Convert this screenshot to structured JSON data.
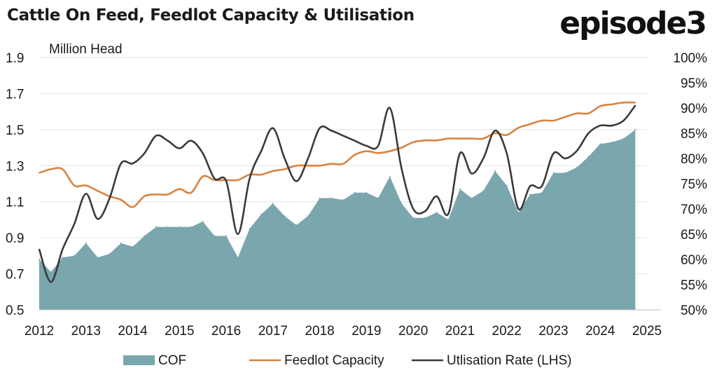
{
  "title": "Cattle On Feed, Feedlot Capacity & Utilisation",
  "logo": "episode3",
  "colors": {
    "cof": "#7aa6ae",
    "capacity": "#d9833f",
    "utilisation": "#3a3a3a",
    "grid": "#e3e3e3"
  },
  "chart_data": {
    "type": "area",
    "title": "Cattle On Feed, Feedlot Capacity & Utilisation",
    "left_axis_label": "Million Head",
    "ylim_left": [
      0.5,
      1.9
    ],
    "left_ticks": [
      "0.5",
      "0.7",
      "0.9",
      "1.1",
      "1.3",
      "1.5",
      "1.7",
      "1.9"
    ],
    "ylim_right": [
      0.5,
      1.0
    ],
    "right_ticks": [
      "50%",
      "55%",
      "60%",
      "65%",
      "70%",
      "75%",
      "80%",
      "85%",
      "90%",
      "95%",
      "100%"
    ],
    "xlim": [
      2012,
      2025
    ],
    "x_ticks": [
      "2012",
      "2013",
      "2014",
      "2015",
      "2016",
      "2017",
      "2018",
      "2019",
      "2020",
      "2021",
      "2022",
      "2023",
      "2024",
      "2025"
    ],
    "legend_position": "bottom",
    "grid": true,
    "series": [
      {
        "name": "COF",
        "type": "area",
        "axis": "left",
        "x": [
          2012.0,
          2012.25,
          2012.5,
          2012.75,
          2013.0,
          2013.25,
          2013.5,
          2013.75,
          2014.0,
          2014.25,
          2014.5,
          2014.75,
          2015.0,
          2015.25,
          2015.5,
          2015.75,
          2016.0,
          2016.25,
          2016.5,
          2016.75,
          2017.0,
          2017.25,
          2017.5,
          2017.75,
          2018.0,
          2018.25,
          2018.5,
          2018.75,
          2019.0,
          2019.25,
          2019.5,
          2019.75,
          2020.0,
          2020.25,
          2020.5,
          2020.75,
          2021.0,
          2021.25,
          2021.5,
          2021.75,
          2022.0,
          2022.25,
          2022.5,
          2022.75,
          2023.0,
          2023.25,
          2023.5,
          2023.75,
          2024.0,
          2024.25,
          2024.5,
          2024.75
        ],
        "values": [
          0.78,
          0.71,
          0.79,
          0.8,
          0.87,
          0.79,
          0.81,
          0.87,
          0.85,
          0.91,
          0.96,
          0.96,
          0.96,
          0.96,
          0.99,
          0.91,
          0.91,
          0.79,
          0.95,
          1.03,
          1.09,
          1.02,
          0.97,
          1.02,
          1.12,
          1.12,
          1.11,
          1.15,
          1.15,
          1.12,
          1.24,
          1.09,
          1.01,
          1.01,
          1.04,
          1.0,
          1.17,
          1.12,
          1.16,
          1.27,
          1.19,
          1.04,
          1.14,
          1.15,
          1.26,
          1.26,
          1.29,
          1.35,
          1.42,
          1.43,
          1.45,
          1.5
        ]
      },
      {
        "name": "Feedlot Capacity",
        "type": "line",
        "axis": "left",
        "x": [
          2012.0,
          2012.25,
          2012.5,
          2012.75,
          2013.0,
          2013.25,
          2013.5,
          2013.75,
          2014.0,
          2014.25,
          2014.5,
          2014.75,
          2015.0,
          2015.25,
          2015.5,
          2015.75,
          2016.0,
          2016.25,
          2016.5,
          2016.75,
          2017.0,
          2017.25,
          2017.5,
          2017.75,
          2018.0,
          2018.25,
          2018.5,
          2018.75,
          2019.0,
          2019.25,
          2019.5,
          2019.75,
          2020.0,
          2020.25,
          2020.5,
          2020.75,
          2021.0,
          2021.25,
          2021.5,
          2021.75,
          2022.0,
          2022.25,
          2022.5,
          2022.75,
          2023.0,
          2023.25,
          2023.5,
          2023.75,
          2024.0,
          2024.25,
          2024.5,
          2024.75
        ],
        "values": [
          1.26,
          1.28,
          1.28,
          1.19,
          1.19,
          1.16,
          1.13,
          1.11,
          1.07,
          1.13,
          1.14,
          1.14,
          1.17,
          1.15,
          1.24,
          1.22,
          1.22,
          1.22,
          1.25,
          1.25,
          1.27,
          1.28,
          1.3,
          1.3,
          1.3,
          1.31,
          1.31,
          1.36,
          1.38,
          1.37,
          1.38,
          1.4,
          1.43,
          1.44,
          1.44,
          1.45,
          1.45,
          1.45,
          1.45,
          1.48,
          1.47,
          1.51,
          1.53,
          1.55,
          1.55,
          1.57,
          1.59,
          1.59,
          1.63,
          1.64,
          1.65,
          1.65
        ]
      },
      {
        "name": "Utlisation Rate (LHS)",
        "type": "line",
        "axis": "right",
        "x": [
          2012.0,
          2012.25,
          2012.5,
          2012.75,
          2013.0,
          2013.25,
          2013.5,
          2013.75,
          2014.0,
          2014.25,
          2014.5,
          2014.75,
          2015.0,
          2015.25,
          2015.5,
          2015.75,
          2016.0,
          2016.25,
          2016.5,
          2016.75,
          2017.0,
          2017.25,
          2017.5,
          2017.75,
          2018.0,
          2018.25,
          2018.5,
          2018.75,
          2019.0,
          2019.25,
          2019.5,
          2019.75,
          2020.0,
          2020.25,
          2020.5,
          2020.75,
          2021.0,
          2021.25,
          2021.5,
          2021.75,
          2022.0,
          2022.25,
          2022.5,
          2022.75,
          2023.0,
          2023.25,
          2023.5,
          2023.75,
          2024.0,
          2024.25,
          2024.5,
          2024.75
        ],
        "values": [
          0.62,
          0.555,
          0.62,
          0.67,
          0.73,
          0.68,
          0.72,
          0.79,
          0.79,
          0.81,
          0.845,
          0.835,
          0.82,
          0.835,
          0.81,
          0.76,
          0.755,
          0.65,
          0.76,
          0.815,
          0.86,
          0.8,
          0.755,
          0.8,
          0.86,
          0.855,
          0.845,
          0.835,
          0.825,
          0.825,
          0.9,
          0.78,
          0.7,
          0.695,
          0.725,
          0.69,
          0.81,
          0.77,
          0.8,
          0.855,
          0.81,
          0.7,
          0.745,
          0.745,
          0.81,
          0.8,
          0.815,
          0.85,
          0.865,
          0.865,
          0.875,
          0.905
        ]
      }
    ]
  }
}
